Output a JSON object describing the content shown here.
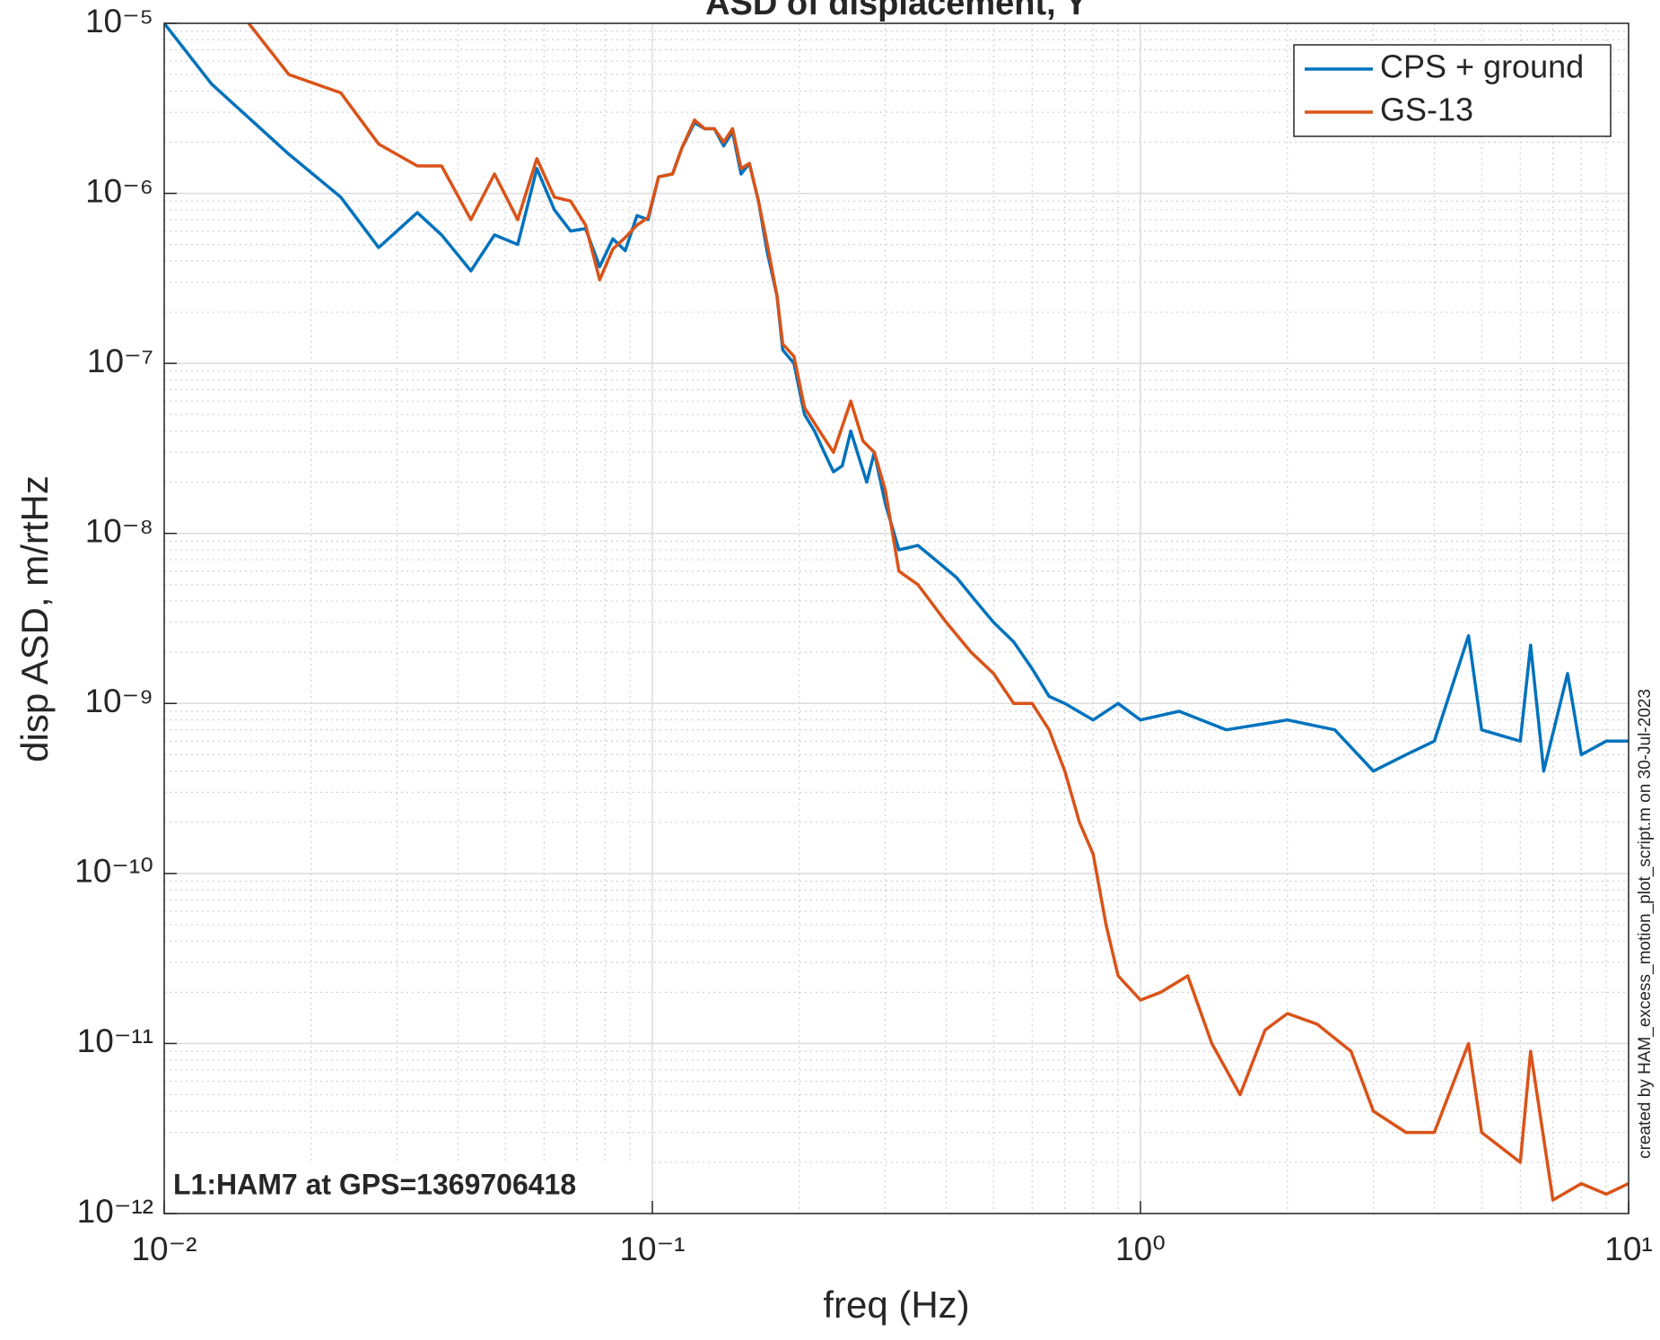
{
  "chart_data": {
    "type": "line",
    "title": "ASD of displacement, Y",
    "xlabel": "freq (Hz)",
    "ylabel": "disp ASD, m/rtHz",
    "annotation": "L1:HAM7 at GPS=1369706418",
    "side_note": "created by HAM_excess_motion_plot_script.m on 30-Jul-2023",
    "log_x": true,
    "log_y": true,
    "grid": true,
    "minor_grid": true,
    "legend": "upper right",
    "xlim": [
      0.01,
      10
    ],
    "xticks": [
      {
        "value": 0.01,
        "label": "10⁻²"
      },
      {
        "value": 0.1,
        "label": "10⁻¹"
      },
      {
        "value": 1,
        "label": "10⁰"
      },
      {
        "value": 10,
        "label": "10¹"
      }
    ],
    "ylim": [
      1e-12,
      1e-05
    ],
    "yticks": [
      {
        "value": 1e-12,
        "label": "10⁻¹²"
      },
      {
        "value": 1e-11,
        "label": "10⁻¹¹"
      },
      {
        "value": 1e-10,
        "label": "10⁻¹⁰"
      },
      {
        "value": 1e-09,
        "label": "10⁻⁹"
      },
      {
        "value": 1e-08,
        "label": "10⁻⁸"
      },
      {
        "value": 1e-07,
        "label": "10⁻⁷"
      },
      {
        "value": 1e-06,
        "label": "10⁻⁶"
      },
      {
        "value": 1e-05,
        "label": "10⁻⁵"
      }
    ],
    "series": [
      {
        "name": "CPS + ground",
        "color": "#0072bd",
        "x": [
          0.01,
          0.0125,
          0.018,
          0.023,
          0.0275,
          0.033,
          0.037,
          0.0425,
          0.0475,
          0.053,
          0.058,
          0.063,
          0.068,
          0.073,
          0.078,
          0.083,
          0.088,
          0.093,
          0.098,
          0.103,
          0.11,
          0.115,
          0.122,
          0.128,
          0.134,
          0.14,
          0.146,
          0.152,
          0.158,
          0.165,
          0.172,
          0.18,
          0.185,
          0.195,
          0.205,
          0.215,
          0.225,
          0.235,
          0.245,
          0.255,
          0.265,
          0.275,
          0.285,
          0.3,
          0.32,
          0.35,
          0.38,
          0.42,
          0.46,
          0.5,
          0.55,
          0.6,
          0.65,
          0.7,
          0.8,
          0.9,
          1.0,
          1.2,
          1.5,
          2.0,
          2.5,
          3.0,
          3.5,
          4.0,
          4.7,
          5.0,
          6.0,
          6.3,
          6.7,
          7.5,
          8.0,
          9.0,
          10
        ],
        "values": [
          1e-05,
          4.4e-06,
          1.7e-06,
          9.5e-07,
          4.8e-07,
          7.7e-07,
          5.7e-07,
          3.5e-07,
          5.7e-07,
          5e-07,
          1.4e-06,
          8e-07,
          6e-07,
          6.2e-07,
          3.7e-07,
          5.4e-07,
          4.6e-07,
          7.4e-07,
          7e-07,
          1.25e-06,
          1.3e-06,
          1.85e-06,
          2.6e-06,
          2.4e-06,
          2.4e-06,
          1.9e-06,
          2.3e-06,
          1.3e-06,
          1.5e-06,
          9e-07,
          4.5e-07,
          2.5e-07,
          1.2e-07,
          1e-07,
          5e-08,
          4e-08,
          3e-08,
          2.3e-08,
          2.5e-08,
          4e-08,
          2.8e-08,
          2e-08,
          3e-08,
          1.5e-08,
          8e-09,
          8.5e-09,
          7e-09,
          5.5e-09,
          4e-09,
          3e-09,
          2.3e-09,
          1.6e-09,
          1.1e-09,
          1e-09,
          8e-10,
          1e-09,
          8e-10,
          9e-10,
          7e-10,
          8e-10,
          7e-10,
          4e-10,
          5e-10,
          6e-10,
          2.5e-09,
          7e-10,
          6e-10,
          2.2e-09,
          4e-10,
          1.5e-09,
          5e-10,
          6e-10,
          6e-10
        ]
      },
      {
        "name": "GS-13",
        "color": "#d95319",
        "x": [
          0.0149,
          0.018,
          0.023,
          0.0275,
          0.033,
          0.037,
          0.0425,
          0.0475,
          0.053,
          0.058,
          0.063,
          0.068,
          0.073,
          0.078,
          0.083,
          0.088,
          0.093,
          0.098,
          0.103,
          0.11,
          0.115,
          0.122,
          0.128,
          0.134,
          0.14,
          0.146,
          0.152,
          0.158,
          0.165,
          0.172,
          0.18,
          0.185,
          0.195,
          0.205,
          0.22,
          0.235,
          0.255,
          0.27,
          0.285,
          0.3,
          0.32,
          0.35,
          0.4,
          0.45,
          0.5,
          0.55,
          0.6,
          0.65,
          0.7,
          0.75,
          0.8,
          0.85,
          0.9,
          1.0,
          1.1,
          1.25,
          1.4,
          1.6,
          1.8,
          2.0,
          2.3,
          2.7,
          3.0,
          3.5,
          4.0,
          4.7,
          5.0,
          6.0,
          6.3,
          7.0,
          8.0,
          9.0,
          10
        ],
        "values": [
          1e-05,
          5e-06,
          3.9e-06,
          1.95e-06,
          1.45e-06,
          1.45e-06,
          7e-07,
          1.3e-06,
          7e-07,
          1.6e-06,
          9.5e-07,
          9e-07,
          6.5e-07,
          3.1e-07,
          4.7e-07,
          5.5e-07,
          6.5e-07,
          7.2e-07,
          1.25e-06,
          1.3e-06,
          1.85e-06,
          2.7e-06,
          2.4e-06,
          2.4e-06,
          2e-06,
          2.4e-06,
          1.4e-06,
          1.5e-06,
          9e-07,
          5e-07,
          2.5e-07,
          1.3e-07,
          1.1e-07,
          5.5e-08,
          4e-08,
          3e-08,
          6e-08,
          3.5e-08,
          3e-08,
          1.8e-08,
          6e-09,
          5e-09,
          3e-09,
          2e-09,
          1.5e-09,
          1e-09,
          1e-09,
          7e-10,
          4e-10,
          2e-10,
          1.3e-10,
          5e-11,
          2.5e-11,
          1.8e-11,
          2e-11,
          2.5e-11,
          1e-11,
          5e-12,
          1.2e-11,
          1.5e-11,
          1.3e-11,
          9e-12,
          4e-12,
          3e-12,
          3e-12,
          1e-11,
          3e-12,
          2e-12,
          9e-12,
          1.2e-12,
          1.5e-12,
          1.3e-12,
          1.5e-12
        ]
      }
    ]
  }
}
